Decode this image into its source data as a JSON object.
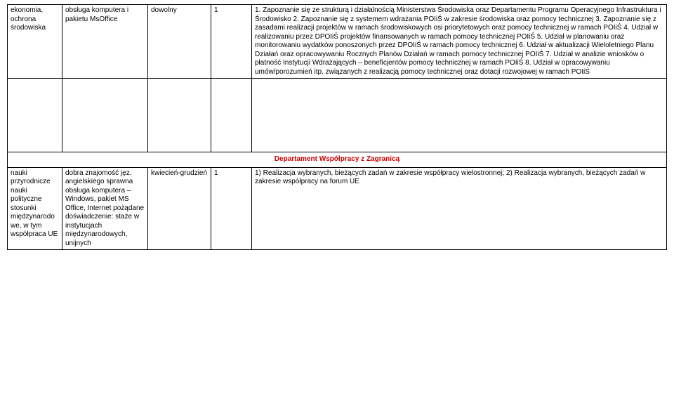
{
  "table1": {
    "rows": [
      {
        "col1": "ekonomia, ochrona środowiska",
        "col2": "obsługa komputera i pakietu MsOffice",
        "col3": "dowolny",
        "col4": "1",
        "col5": "1. Zapoznanie się ze strukturą i działalnością Ministerstwa Środowiska oraz Departamentu Programu Operacyjnego Infrastruktura i Środowisko\n2. Zapoznanie się z systemem wdrażania POIiŚ w zakresie środowiska oraz pomocy technicznej\n3. Zapoznanie się z zasadami realizacji projektów w ramach środowiskowych osi priorytetowych oraz pomocy technicznej w ramach POIiŚ\n4. Udział w realizowaniu przez DPOIiŚ projektów finansowanych w ramach pomocy technicznej POIiŚ\n5. Udział w planowaniu oraz monitorowaniu wydatków ponoszonych przez DPOIiŚ w ramach pomocy technicznej\n6. Udział w aktualizacji Wieloletniego Planu Działań oraz opracowywaniu Rocznych Planów Działań w ramach pomocy technicznej POIiŚ\n7. Udział w analizie wniosków o płatność Instytucji Wdrażających – beneficjentów pomocy technicznej w ramach POIiŚ\n8. Udział w opracowywaniu umów/porozumień itp. związanych z realizacją pomocy technicznej oraz dotacji rozwojowej w ramach POIiŚ"
      }
    ]
  },
  "sectionHeader": "Departament Współpracy z Zagranicą",
  "table2": {
    "rows": [
      {
        "col1": "nauki przyrodnicze nauki polityczne stosunki międzynarodowe, w tym współpraca UE",
        "col2": "dobra znajomość jęz. angielskiego\nsprawna obsługa komputera – Windows, pakiet MS Office, Internet\npożądane doświadczenie: staże w instytucjach międzynarodowych, unijnych",
        "col3": "kwiecień-grudzień",
        "col4": "1",
        "col5": "1) Realizacja wybranych, bieżących zadań w zakresie współpracy wielostronnej;\n2) Realizacja wybranych, bieżących zadań w zakresie współpracy na forum UE"
      }
    ]
  }
}
